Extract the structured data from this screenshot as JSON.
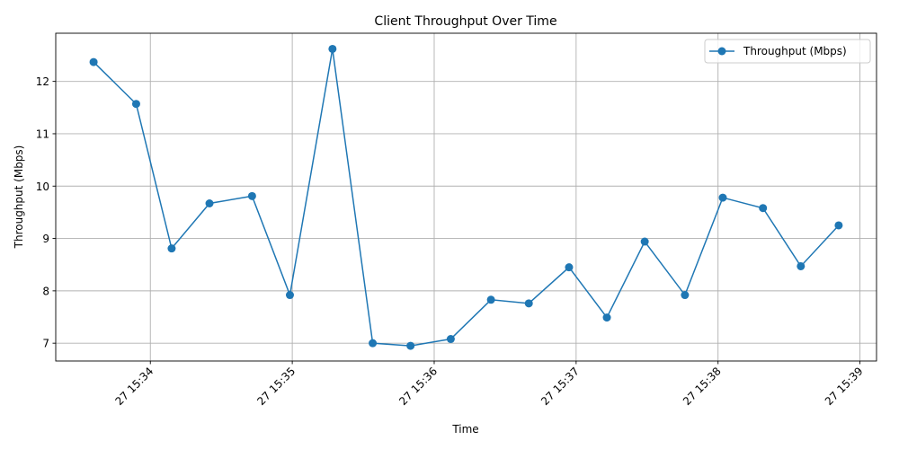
{
  "chart_data": {
    "type": "line",
    "title": "Client Throughput Over Time",
    "xlabel": "Time",
    "ylabel": "Throughput (Mbps)",
    "grid": true,
    "legend_position": "top-right",
    "x_ticks": [
      "27 15:34",
      "27 15:35",
      "27 15:36",
      "27 15:37",
      "27 15:38",
      "27 15:39"
    ],
    "y_ticks": [
      7,
      8,
      9,
      10,
      11,
      12
    ],
    "xlim": [
      "15:33:20",
      "15:39:07"
    ],
    "ylim": [
      6.66,
      12.92
    ],
    "series": [
      {
        "name": "Throughput (Mbps)",
        "color": "#1f77b4",
        "marker": "circle",
        "x": [
          "15:33:36",
          "15:33:54",
          "15:34:09",
          "15:34:25",
          "15:34:43",
          "15:34:59",
          "15:35:17",
          "15:35:34",
          "15:35:50",
          "15:36:07",
          "15:36:24",
          "15:36:40",
          "15:36:57",
          "15:37:13",
          "15:37:29",
          "15:37:46",
          "15:38:02",
          "15:38:19",
          "15:38:35",
          "15:38:51"
        ],
        "values": [
          12.37,
          11.57,
          8.81,
          9.67,
          9.81,
          7.92,
          12.62,
          7.0,
          6.95,
          7.08,
          7.83,
          7.76,
          8.45,
          7.49,
          8.94,
          7.92,
          9.78,
          9.58,
          8.47,
          9.25
        ]
      }
    ]
  }
}
